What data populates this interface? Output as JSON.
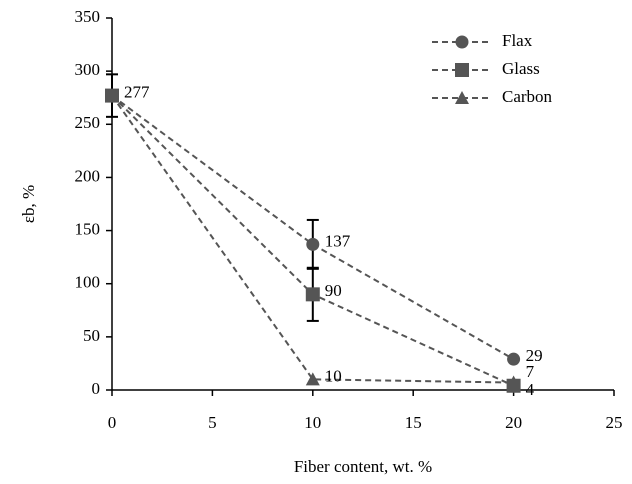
{
  "chart_data": {
    "type": "line",
    "xlabel": "Fiber content, wt. %",
    "ylabel": "εb, %",
    "x": [
      0,
      10,
      20
    ],
    "series": [
      {
        "name": "Flax",
        "color": "#555555",
        "marker": "circle",
        "values": [
          277,
          137,
          29
        ],
        "errors": [
          20,
          23,
          null
        ]
      },
      {
        "name": "Glass",
        "color": "#555555",
        "marker": "square",
        "values": [
          277,
          90,
          4
        ],
        "errors": [
          null,
          25,
          null
        ]
      },
      {
        "name": "Carbon",
        "color": "#555555",
        "marker": "triangle",
        "values": [
          277,
          10,
          7
        ]
      }
    ],
    "xlim": [
      0,
      25
    ],
    "xticks": [
      0,
      5,
      10,
      15,
      20,
      25
    ],
    "ylim": [
      0,
      350
    ],
    "yticks": [
      0,
      50,
      100,
      150,
      200,
      250,
      300,
      350
    ],
    "grid": false,
    "legend": "top-right"
  }
}
